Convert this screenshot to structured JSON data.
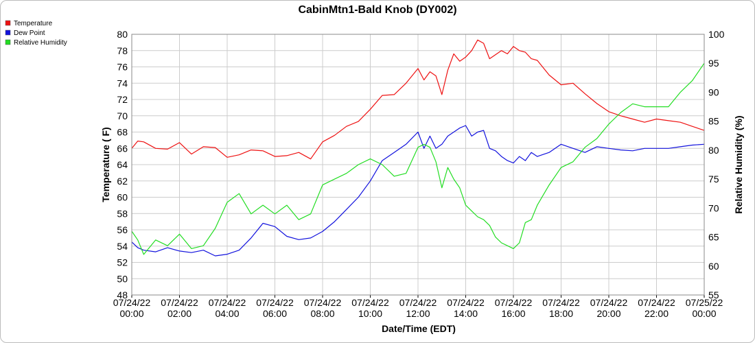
{
  "chart_data": {
    "type": "line",
    "title": "CabinMtn1-Bald Knob (DY002)",
    "xlabel": "Date/Time (EDT)",
    "ylabel_left": "Temperature ( F)",
    "ylabel_right": "Relative Humidity (%)",
    "ylim_left": [
      48,
      80
    ],
    "ylim_right": [
      55,
      100
    ],
    "xlim_hours": [
      0,
      24
    ],
    "grid": true,
    "legend_position": "top-left",
    "left_ticks": [
      "48",
      "50",
      "52",
      "54",
      "56",
      "58",
      "60",
      "62",
      "64",
      "66",
      "68",
      "70",
      "72",
      "74",
      "76",
      "78",
      "80"
    ],
    "right_ticks": [
      "55",
      "60",
      "65",
      "70",
      "75",
      "80",
      "85",
      "90",
      "95",
      "100"
    ],
    "x_ticks": [
      {
        "date": "07/24/22",
        "time": "00:00"
      },
      {
        "date": "07/24/22",
        "time": "02:00"
      },
      {
        "date": "07/24/22",
        "time": "04:00"
      },
      {
        "date": "07/24/22",
        "time": "06:00"
      },
      {
        "date": "07/24/22",
        "time": "08:00"
      },
      {
        "date": "07/24/22",
        "time": "10:00"
      },
      {
        "date": "07/24/22",
        "time": "12:00"
      },
      {
        "date": "07/24/22",
        "time": "14:00"
      },
      {
        "date": "07/24/22",
        "time": "16:00"
      },
      {
        "date": "07/24/22",
        "time": "18:00"
      },
      {
        "date": "07/24/22",
        "time": "20:00"
      },
      {
        "date": "07/24/22",
        "time": "22:00"
      },
      {
        "date": "07/25/22",
        "time": "00:00"
      }
    ],
    "series": [
      {
        "name": "Temperature",
        "color": "#ee1111",
        "axis": "left",
        "hours": [
          0,
          0.25,
          0.5,
          1,
          1.5,
          2,
          2.5,
          3,
          3.5,
          4,
          4.5,
          5,
          5.5,
          6,
          6.5,
          7,
          7.5,
          8,
          8.5,
          9,
          9.5,
          10,
          10.5,
          11,
          11.5,
          12,
          12.25,
          12.5,
          12.75,
          13,
          13.25,
          13.5,
          13.75,
          14,
          14.25,
          14.5,
          14.75,
          15,
          15.25,
          15.5,
          15.75,
          16,
          16.25,
          16.5,
          16.75,
          17,
          17.5,
          18,
          18.5,
          19,
          19.5,
          20,
          20.5,
          21,
          21.5,
          22,
          22.5,
          23,
          23.5,
          24
        ],
        "values": [
          66.0,
          66.9,
          66.8,
          66.0,
          65.9,
          66.7,
          65.3,
          66.2,
          66.1,
          64.9,
          65.2,
          65.8,
          65.7,
          65.0,
          65.1,
          65.5,
          64.7,
          66.8,
          67.6,
          68.7,
          69.3,
          70.8,
          72.5,
          72.6,
          74.0,
          75.8,
          74.4,
          75.4,
          74.9,
          72.6,
          75.6,
          77.6,
          76.7,
          77.2,
          78.0,
          79.3,
          78.9,
          77.0,
          77.5,
          78.0,
          77.6,
          78.5,
          78.0,
          77.8,
          77.0,
          76.8,
          75.0,
          73.8,
          74.0,
          72.7,
          71.5,
          70.5,
          70.0,
          69.6,
          69.2,
          69.6,
          69.4,
          69.2,
          68.7,
          68.2
        ]
      },
      {
        "name": "Dew Point",
        "color": "#1111dd",
        "axis": "left",
        "hours": [
          0,
          0.25,
          0.5,
          1,
          1.5,
          2,
          2.5,
          3,
          3.5,
          4,
          4.5,
          5,
          5.5,
          6,
          6.5,
          7,
          7.5,
          8,
          8.5,
          9,
          9.5,
          10,
          10.5,
          11,
          11.5,
          12,
          12.25,
          12.5,
          12.75,
          13,
          13.25,
          13.5,
          13.75,
          14,
          14.25,
          14.5,
          14.75,
          15,
          15.25,
          15.5,
          15.75,
          16,
          16.25,
          16.5,
          16.75,
          17,
          17.5,
          18,
          18.5,
          19,
          19.5,
          20,
          20.5,
          21,
          21.5,
          22,
          22.5,
          23,
          23.5,
          24
        ],
        "values": [
          54.5,
          53.8,
          53.5,
          53.3,
          53.8,
          53.4,
          53.2,
          53.5,
          52.8,
          53.0,
          53.5,
          55.0,
          56.8,
          56.4,
          55.2,
          54.8,
          55.0,
          55.8,
          57.0,
          58.5,
          60.0,
          62.0,
          64.5,
          65.5,
          66.5,
          68.0,
          66.0,
          67.5,
          66.0,
          66.5,
          67.5,
          68.0,
          68.5,
          68.8,
          67.5,
          68.0,
          68.2,
          66.0,
          65.7,
          65.0,
          64.5,
          64.2,
          65.0,
          64.5,
          65.5,
          65.0,
          65.5,
          66.5,
          66.0,
          65.5,
          66.2,
          66.0,
          65.8,
          65.7,
          66.0,
          66.0,
          66.0,
          66.2,
          66.4,
          66.5
        ]
      },
      {
        "name": "Relative Humidity",
        "color": "#22dd22",
        "axis": "right",
        "hours": [
          0,
          0.25,
          0.5,
          1,
          1.5,
          2,
          2.5,
          3,
          3.5,
          4,
          4.5,
          5,
          5.5,
          6,
          6.5,
          7,
          7.5,
          8,
          8.5,
          9,
          9.5,
          10,
          10.5,
          11,
          11.5,
          12,
          12.25,
          12.5,
          12.75,
          13,
          13.25,
          13.5,
          13.75,
          14,
          14.25,
          14.5,
          14.75,
          15,
          15.25,
          15.5,
          15.75,
          16,
          16.25,
          16.5,
          16.75,
          17,
          17.5,
          18,
          18.5,
          19,
          19.5,
          20,
          20.5,
          21,
          21.5,
          22,
          22.5,
          23,
          23.5,
          24
        ],
        "values": [
          66.0,
          64.5,
          62.0,
          64.5,
          63.5,
          65.5,
          63.0,
          63.5,
          66.5,
          71.0,
          72.5,
          69.0,
          70.5,
          69.0,
          70.5,
          68.0,
          69.0,
          74.0,
          75.0,
          76.0,
          77.5,
          78.5,
          77.5,
          75.5,
          76.0,
          80.5,
          81.0,
          80.5,
          78.0,
          73.5,
          77.0,
          75.0,
          73.5,
          70.5,
          69.5,
          68.5,
          68.0,
          67.0,
          65.0,
          64.0,
          63.5,
          63.0,
          64.0,
          67.5,
          68.0,
          70.5,
          74.0,
          77.0,
          78.0,
          80.5,
          82.0,
          84.5,
          86.5,
          88.0,
          87.5,
          87.5,
          87.5,
          90.0,
          92.0,
          95.0
        ]
      }
    ]
  }
}
